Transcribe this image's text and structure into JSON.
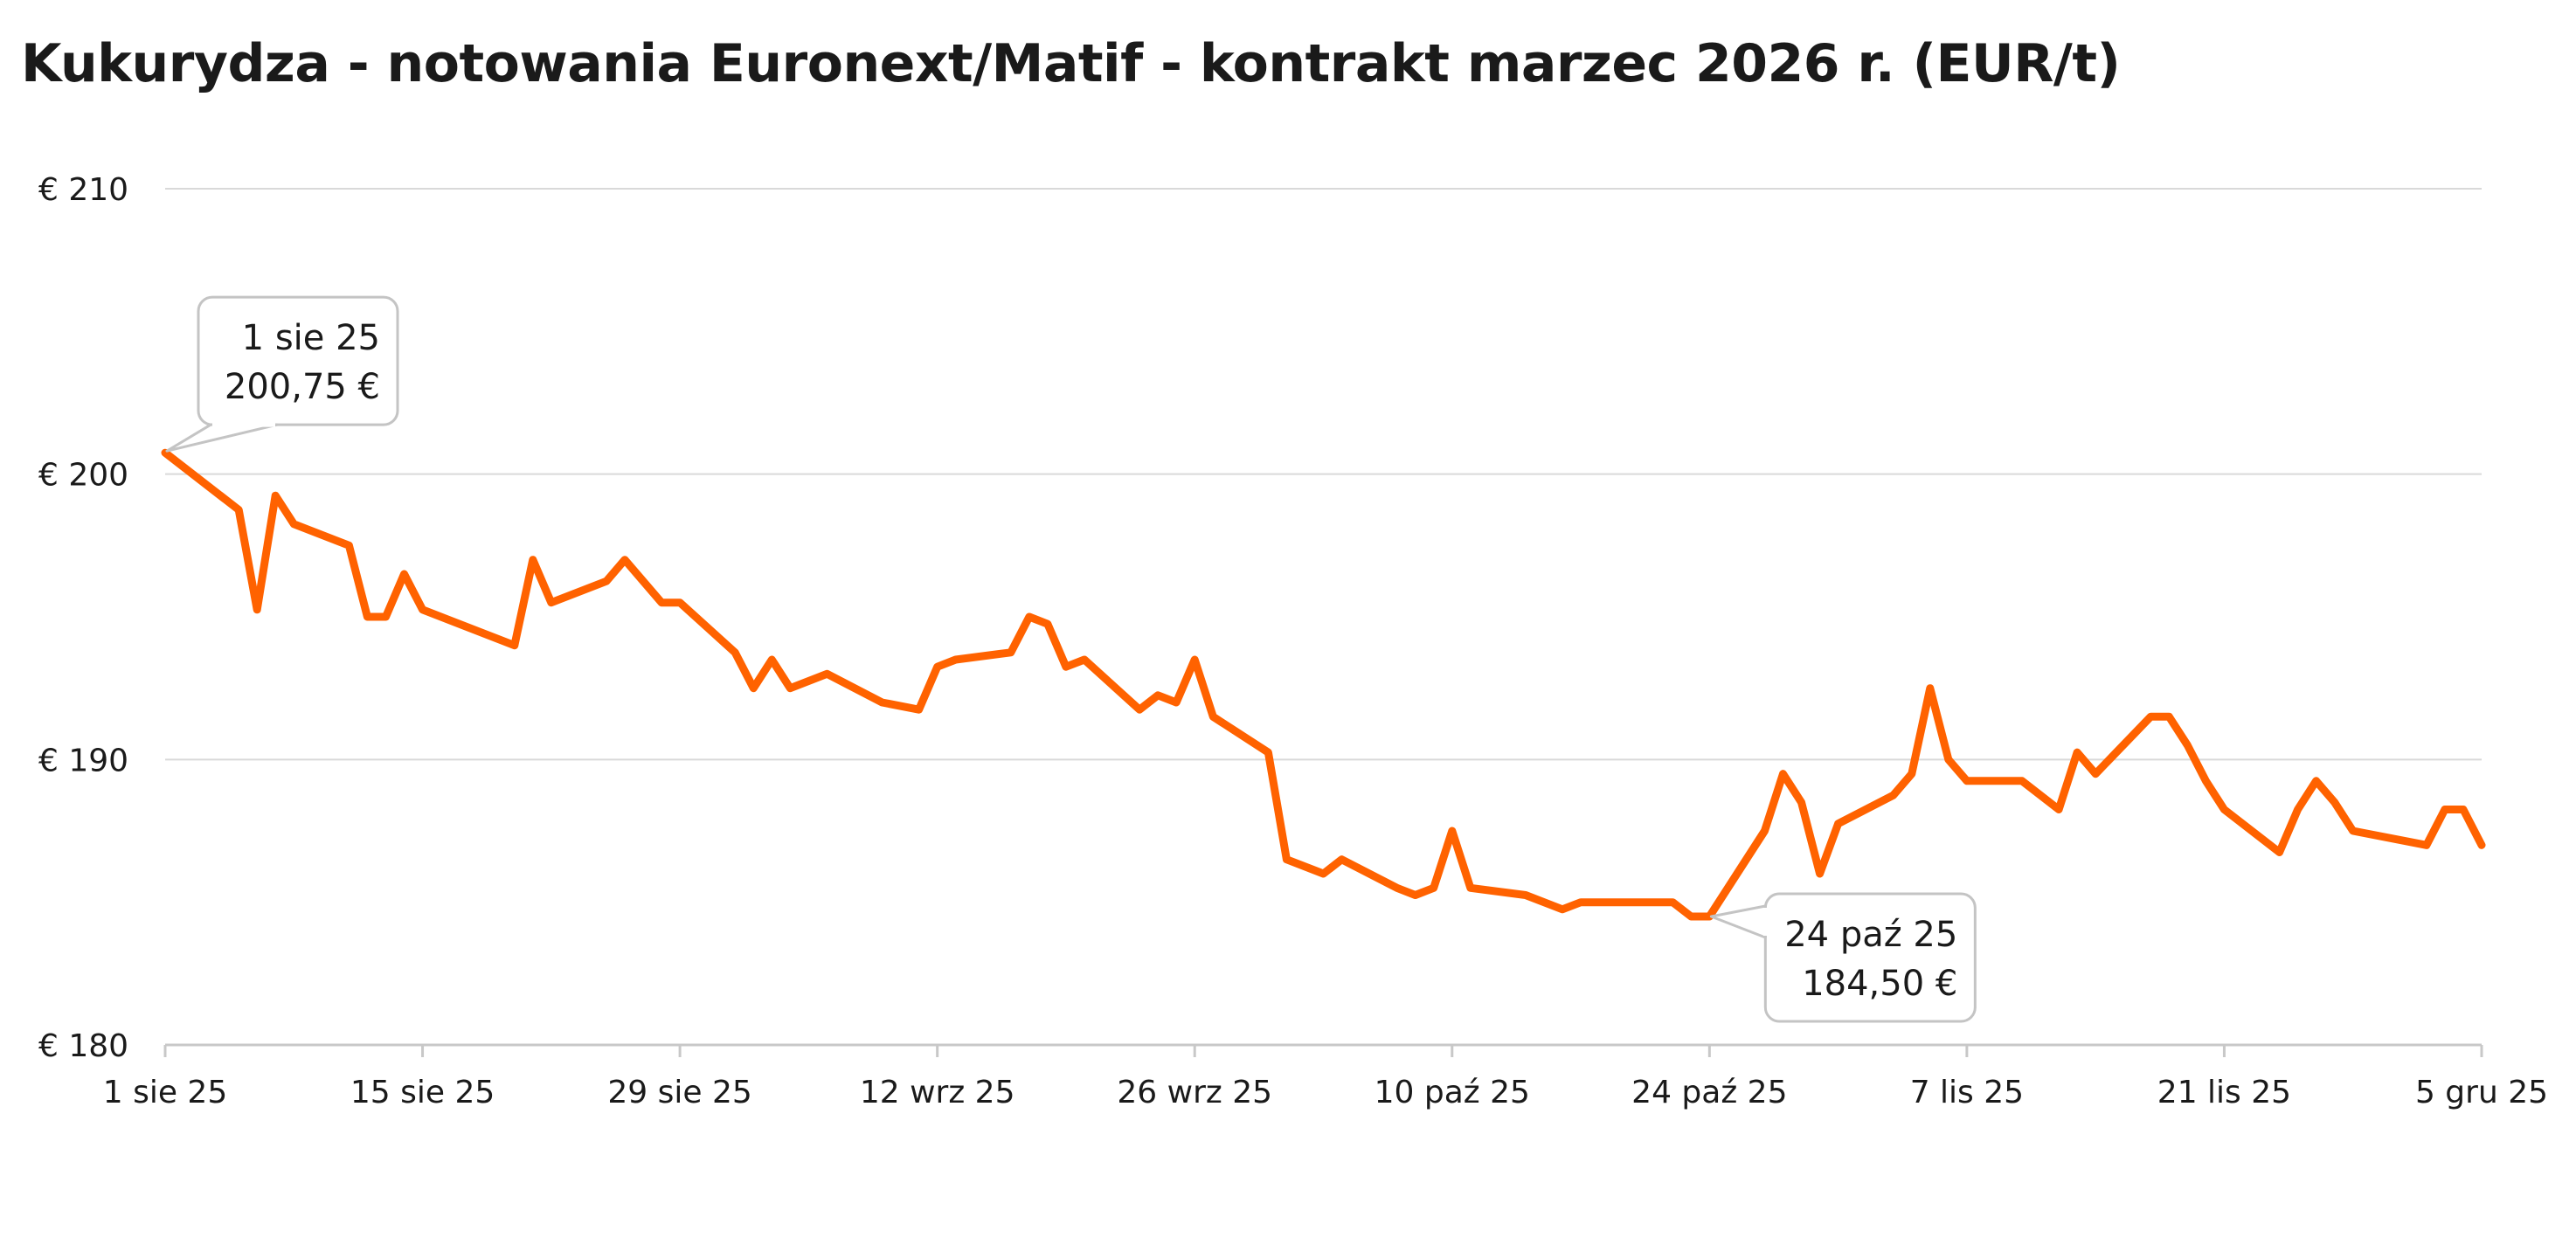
{
  "chart_data": {
    "type": "line",
    "title": "Kukurydza - notowania Euronext/Matif - kontrakt marzec 2026 r. (EUR/t)",
    "xlabel": "",
    "ylabel": "",
    "ylim": [
      180,
      210
    ],
    "y_ticks": [
      180,
      190,
      200,
      210
    ],
    "y_tick_labels": [
      "€ 180",
      "€ 190",
      "€ 200",
      "€ 210"
    ],
    "x_tick_dates": [
      "2025-08-01",
      "2025-08-15",
      "2025-08-29",
      "2025-09-12",
      "2025-09-26",
      "2025-10-10",
      "2025-10-24",
      "2025-11-07",
      "2025-11-21",
      "2025-12-05"
    ],
    "x_tick_labels": [
      "1 sie 25",
      "15 sie 25",
      "29 sie 25",
      "12 wrz 25",
      "26 wrz 25",
      "10 paź 25",
      "24 paź 25",
      "7 lis 25",
      "21 lis 25",
      "5 gru 25"
    ],
    "xlim": [
      "2025-08-01",
      "2025-12-05"
    ],
    "grid": true,
    "colors": {
      "line": "#FF6200",
      "grid": "#d9d9d9",
      "axis": "#c8c8c8"
    },
    "series": [
      {
        "x": [
          "2025-08-01",
          "2025-08-05",
          "2025-08-06",
          "2025-08-07",
          "2025-08-08",
          "2025-08-11",
          "2025-08-12",
          "2025-08-13",
          "2025-08-14",
          "2025-08-15",
          "2025-08-20",
          "2025-08-21",
          "2025-08-22",
          "2025-08-25",
          "2025-08-26",
          "2025-08-28",
          "2025-08-29",
          "2025-09-01",
          "2025-09-02",
          "2025-09-03",
          "2025-09-04",
          "2025-09-06",
          "2025-09-09",
          "2025-09-11",
          "2025-09-12",
          "2025-09-13",
          "2025-09-16",
          "2025-09-17",
          "2025-09-18",
          "2025-09-19",
          "2025-09-20",
          "2025-09-23",
          "2025-09-24",
          "2025-09-25",
          "2025-09-26",
          "2025-09-27",
          "2025-09-30",
          "2025-10-01",
          "2025-10-03",
          "2025-10-04",
          "2025-10-07",
          "2025-10-08",
          "2025-10-09",
          "2025-10-10",
          "2025-10-11",
          "2025-10-14",
          "2025-10-16",
          "2025-10-17",
          "2025-10-22",
          "2025-10-23",
          "2025-10-24",
          "2025-10-27",
          "2025-10-28",
          "2025-10-29",
          "2025-10-30",
          "2025-10-31",
          "2025-11-03",
          "2025-11-04",
          "2025-11-05",
          "2025-11-06",
          "2025-11-07",
          "2025-11-10",
          "2025-11-12",
          "2025-11-13",
          "2025-11-14",
          "2025-11-17",
          "2025-11-18",
          "2025-11-19",
          "2025-11-20",
          "2025-11-21",
          "2025-11-24",
          "2025-11-25",
          "2025-11-26",
          "2025-11-27",
          "2025-11-28",
          "2025-12-02",
          "2025-12-03",
          "2025-12-04",
          "2025-12-05"
        ],
        "values": [
          200.75,
          198.75,
          195.25,
          199.25,
          198.25,
          197.5,
          195.0,
          195.0,
          196.5,
          195.25,
          194.0,
          197.0,
          195.5,
          196.25,
          197.0,
          195.5,
          195.5,
          193.75,
          192.5,
          193.5,
          192.5,
          193.0,
          192.0,
          191.75,
          193.25,
          193.5,
          193.75,
          195.0,
          194.75,
          193.25,
          193.5,
          191.75,
          192.25,
          192.0,
          193.5,
          191.5,
          190.25,
          186.5,
          186.0,
          186.5,
          185.5,
          185.25,
          185.5,
          187.5,
          185.5,
          185.25,
          184.75,
          185.0,
          185.0,
          184.5,
          184.5,
          187.5,
          189.5,
          188.5,
          186.0,
          187.75,
          188.75,
          189.5,
          192.5,
          190.0,
          189.25,
          189.25,
          188.25,
          190.25,
          189.5,
          191.5,
          191.5,
          190.5,
          189.25,
          188.25,
          186.75,
          188.25,
          189.25,
          188.5,
          187.5,
          187.0,
          188.25,
          188.25,
          187.0
        ]
      }
    ],
    "annotations": [
      {
        "date": "2025-08-01",
        "value": 200.75,
        "label_date": "1 sie 25",
        "label_value": "200,75 €"
      },
      {
        "date": "2025-10-24",
        "value": 184.5,
        "label_date": "24 paź 25",
        "label_value": "184,50 €"
      }
    ]
  }
}
